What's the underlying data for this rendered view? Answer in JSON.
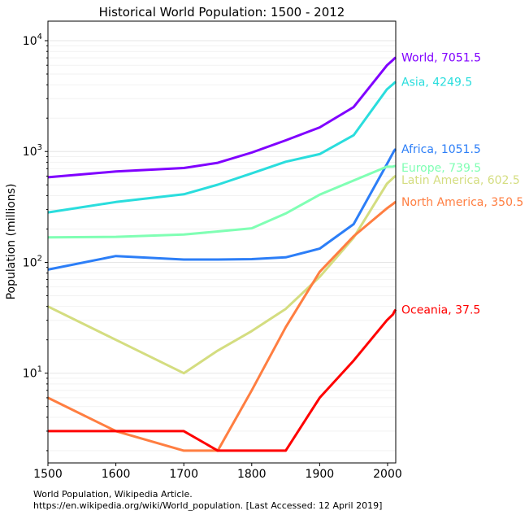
{
  "chart_data": {
    "type": "line",
    "title": "Historical World Population: 1500 - 2012",
    "xlabel": "",
    "ylabel": "Population (millions)",
    "xlim": [
      1500,
      2012
    ],
    "ylim": [
      1.55,
      15000
    ],
    "yscale": "log",
    "x_ticks": [
      "1500",
      "1600",
      "1700",
      "1800",
      "1900",
      "2000"
    ],
    "y_ticks": [
      {
        "value": 10,
        "base": "10",
        "exp": "1"
      },
      {
        "value": 100,
        "base": "10",
        "exp": "2"
      },
      {
        "value": 1000,
        "base": "10",
        "exp": "3"
      },
      {
        "value": 10000,
        "base": "10",
        "exp": "4"
      }
    ],
    "grid": true,
    "x": [
      1500,
      1600,
      1700,
      1750,
      1800,
      1850,
      1900,
      1950,
      1999,
      2008,
      2010,
      2012
    ],
    "series": [
      {
        "name": "World",
        "color": "#8000ff",
        "end_label": "World, 7051.5",
        "values": [
          585,
          660,
          710,
          791,
          978,
          1262,
          1650,
          2519,
          5978,
          6707,
          6896,
          7052
        ]
      },
      {
        "name": "Asia",
        "color": "#2adddd",
        "end_label": "Asia, 4249.5",
        "values": [
          282,
          350,
          411,
          502,
          635,
          809,
          947,
          1402,
          3634,
          4054,
          4164,
          4250
        ]
      },
      {
        "name": "Africa",
        "color": "#2c7ef7",
        "end_label": "Africa, 1051.5",
        "values": [
          86,
          114,
          106,
          106,
          107,
          111,
          133,
          221,
          767,
          973,
          1022,
          1052
        ]
      },
      {
        "name": "Europe",
        "color": "#80ffb4",
        "end_label": "Europe, 739.5",
        "values": [
          168,
          170,
          178,
          190,
          203,
          276,
          408,
          547,
          729,
          732,
          738,
          740
        ]
      },
      {
        "name": "Latin America",
        "color": "#d4dd80",
        "end_label": "Latin America, 602.5",
        "values": [
          40,
          20,
          10,
          16,
          24,
          38,
          74,
          167,
          511,
          577,
          590,
          603
        ]
      },
      {
        "name": "North America",
        "color": "#ff7e41",
        "end_label": "North America, 350.5",
        "values": [
          6,
          3,
          2,
          2,
          7,
          26,
          82,
          172,
          307,
          337,
          345,
          351
        ]
      },
      {
        "name": "Oceania",
        "color": "#ff0000",
        "end_label": "Oceania, 37.5",
        "values": [
          3,
          3,
          3,
          2,
          2,
          2,
          6,
          13,
          30,
          34,
          36,
          37.5
        ]
      }
    ],
    "source": [
      "World Population, Wikipedia Article.",
      "https://en.wikipedia.org/wiki/World_population. [Last Accessed: 12 April 2019]"
    ]
  }
}
